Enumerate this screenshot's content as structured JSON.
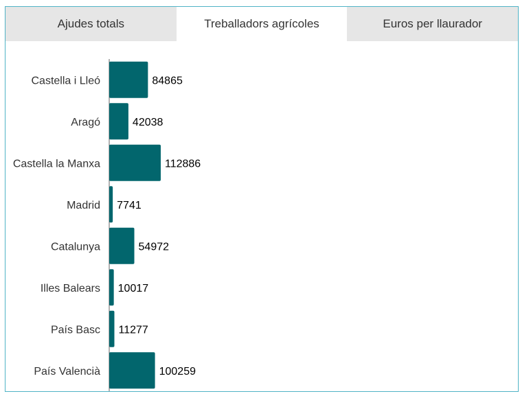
{
  "tabs": [
    {
      "label": "Ajudes totals",
      "active": false
    },
    {
      "label": "Treballadors agrícoles",
      "active": true
    },
    {
      "label": "Euros per llaurador",
      "active": false
    }
  ],
  "colors": {
    "bar": "#02666d",
    "frame_border": "#4fb3c6",
    "tab_inactive_bg": "#e6e6e6",
    "tab_active_bg": "#ffffff",
    "axis": "#666666"
  },
  "chart_data": {
    "type": "bar",
    "orientation": "horizontal",
    "categories": [
      "Castella i Lleó",
      "Aragó",
      "Castella la Manxa",
      "Madrid",
      "Catalunya",
      "Illes Balears",
      "País Basc",
      "País Valencià"
    ],
    "values": [
      84865,
      42038,
      112886,
      7741,
      54972,
      10017,
      11277,
      100259
    ],
    "data_labels": true,
    "grid": false,
    "xlim": [
      0,
      900000
    ]
  }
}
